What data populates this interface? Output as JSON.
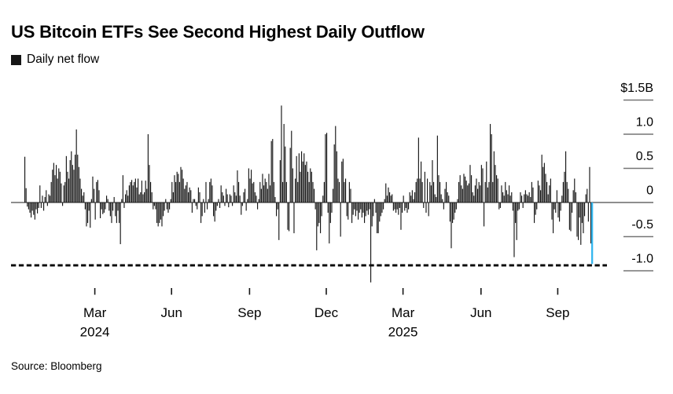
{
  "header": {
    "title": "US Bitcoin ETFs See Second Highest Daily Outflow",
    "legend_label": "Daily net flow"
  },
  "source": "Source: Bloomberg",
  "colors": {
    "bar": "#161616",
    "highlight": "#35b7ef",
    "zero_line": "#4a4a4a",
    "tick": "#757575",
    "dashed_line": "#000000",
    "text": "#000000",
    "background": "#ffffff"
  },
  "chart_data": {
    "type": "bar",
    "title": "US Bitcoin ETFs See Second Highest Daily Outflow",
    "series_name": "Daily net flow",
    "unit": "$B (daily net flow, US spot Bitcoin ETFs)",
    "ylim": [
      -1.25,
      1.55
    ],
    "grid": false,
    "legend_position": "top-left",
    "y_ticks": [
      {
        "label": "$1.5B",
        "value": 1.5
      },
      {
        "label": "1.0",
        "value": 1.0
      },
      {
        "label": "0.5",
        "value": 0.5
      },
      {
        "label": "0",
        "value": 0
      },
      {
        "label": "-0.5",
        "value": -0.5
      },
      {
        "label": "-1.0",
        "value": -1.0
      }
    ],
    "x_ticks": [
      {
        "label": "Mar",
        "year": "2024",
        "index": 56
      },
      {
        "label": "Jun",
        "index": 117
      },
      {
        "label": "Sep",
        "index": 179
      },
      {
        "label": "Dec",
        "index": 240
      },
      {
        "label": "Mar",
        "year": "2025",
        "index": 301
      },
      {
        "label": "Jun",
        "index": 363
      },
      {
        "label": "Sep",
        "index": 424
      }
    ],
    "reference_line": {
      "value": -0.92,
      "style": "dashed",
      "meaning": "level of second highest daily outflow"
    },
    "highlight": {
      "position": "last-bar",
      "value": -0.9,
      "color": "#35b7ef",
      "note": "second highest daily outflow"
    },
    "values": [
      0.67,
      0.21,
      -0.06,
      -0.1,
      -0.15,
      -0.22,
      -0.12,
      -0.18,
      -0.25,
      -0.1,
      -0.16,
      -0.08,
      0.25,
      -0.08,
      0.1,
      -0.12,
      0.08,
      0.18,
      -0.05,
      0.12,
      0.1,
      0.3,
      0.48,
      0.58,
      0.4,
      0.55,
      0.35,
      0.5,
      0.45,
      0.28,
      -0.05,
      0.25,
      0.3,
      0.68,
      0.45,
      0.35,
      0.62,
      0.75,
      0.55,
      0.48,
      0.7,
      1.07,
      0.7,
      0.52,
      0.35,
      0.2,
      0.1,
      0.15,
      -0.1,
      -0.35,
      -0.3,
      -0.12,
      -0.37,
      0.05,
      0.38,
      0.2,
      -0.25,
      0.3,
      0.33,
      0.18,
      -0.23,
      -0.1,
      -0.17,
      -0.15,
      -0.1,
      0.1,
      0.05,
      -0.12,
      -0.2,
      -0.3,
      -0.12,
      0.08,
      -0.2,
      -0.3,
      -0.12,
      -0.3,
      -0.61,
      0.05,
      0.4,
      -0.08,
      0.12,
      0.18,
      0.1,
      0.25,
      0.3,
      0.33,
      0.25,
      0.3,
      0.35,
      0.22,
      0.35,
      0.12,
      0.15,
      0.32,
      0.12,
      0.15,
      0.32,
      0.2,
      1.0,
      0.55,
      0.3,
      0.15,
      -0.1,
      -0.05,
      -0.1,
      -0.3,
      -0.35,
      -0.3,
      -0.25,
      -0.35,
      -0.2,
      -0.12,
      0.05,
      -0.1,
      -0.15,
      -0.1,
      0.05,
      0.3,
      0.15,
      0.4,
      0.3,
      0.45,
      0.42,
      0.3,
      0.52,
      0.48,
      0.35,
      0.2,
      0.25,
      0.3,
      0.15,
      0.22,
      0.18,
      -0.15,
      0.05,
      0.05,
      -0.05,
      -0.1,
      0.22,
      0.15,
      -0.3,
      -0.2,
      0.05,
      -0.15,
      0.3,
      -0.1,
      0.05,
      0.3,
      0.35,
      0.25,
      -0.2,
      -0.28,
      -0.12,
      -0.05,
      0.05,
      -0.08,
      0.25,
      0.15,
      0.1,
      -0.05,
      0.2,
      0.12,
      -0.07,
      0.12,
      0.1,
      -0.05,
      0.25,
      0.15,
      0.1,
      0.47,
      0.3,
      0.1,
      -0.18,
      -0.05,
      0.15,
      0.2,
      -0.12,
      0.05,
      0.5,
      0.35,
      0.48,
      0.28,
      0.3,
      0.15,
      0.1,
      -0.1,
      0.05,
      0.3,
      0.2,
      0.42,
      0.25,
      0.35,
      0.3,
      0.2,
      0.42,
      0.25,
      0.9,
      0.93,
      0.3,
      0.08,
      -0.2,
      -0.1,
      -0.55,
      0.62,
      1.42,
      0.3,
      1.15,
      0.82,
      0.3,
      -0.4,
      -0.42,
      0.8,
      1.05,
      0.5,
      -0.45,
      0.35,
      0.68,
      0.3,
      0.72,
      0.45,
      0.75,
      0.6,
      0.72,
      0.55,
      0.6,
      0.45,
      0.3,
      0.5,
      0.45,
      0.3,
      0.2,
      -0.1,
      -0.7,
      -0.35,
      -0.3,
      -0.45,
      -0.2,
      0.1,
      0.3,
      1.0,
      1.02,
      -0.15,
      -0.6,
      -0.3,
      -0.15,
      0.2,
      0.85,
      1.12,
      0.75,
      0.35,
      0.3,
      -0.5,
      0.6,
      0.64,
      0.3,
      0.35,
      -0.2,
      -0.25,
      0.3,
      0.2,
      -0.3,
      -0.18,
      -0.1,
      -0.2,
      -0.12,
      -0.25,
      -0.15,
      -0.1,
      -0.22,
      -0.15,
      -0.3,
      -0.2,
      -0.12,
      -0.18,
      -0.1,
      -1.17,
      -0.35,
      -0.2,
      0.05,
      -0.15,
      -0.45,
      -0.45,
      -0.28,
      -0.2,
      -0.15,
      -0.1,
      0.05,
      0.28,
      0.1,
      0.22,
      0.15,
      0.1,
      0.12,
      -0.12,
      -0.1,
      -0.15,
      -0.1,
      -0.18,
      -0.08,
      -0.4,
      -0.15,
      0.1,
      -0.12,
      -0.08,
      -0.15,
      -0.1,
      0.15,
      0.1,
      0.18,
      0.05,
      0.15,
      0.3,
      0.35,
      0.95,
      0.35,
      0.6,
      0.3,
      -0.08,
      0.45,
      -0.15,
      0.35,
      -0.2,
      0.3,
      0.25,
      0.62,
      0.3,
      0.12,
      0.08,
      0.98,
      0.4,
      0.3,
      0.12,
      0.05,
      -0.1,
      0.2,
      0.3,
      0.15,
      0.1,
      -0.28,
      -0.67,
      -0.3,
      -0.25,
      -0.15,
      -0.1,
      0.05,
      0.3,
      0.4,
      0.25,
      0.2,
      0.42,
      0.38,
      0.32,
      0.25,
      0.28,
      0.55,
      0.4,
      0.15,
      0.1,
      0.25,
      0.35,
      0.2,
      0.3,
      0.25,
      0.55,
      0.5,
      -0.35,
      0.3,
      0.6,
      0.22,
      0.3,
      1.15,
      1.0,
      0.3,
      0.75,
      0.55,
      0.4,
      0.35,
      -0.1,
      -0.08,
      0.25,
      0.15,
      0.1,
      0.3,
      0.18,
      0.12,
      0.25,
      0.1,
      0.15,
      -0.12,
      -0.8,
      -0.3,
      -0.55,
      -0.12,
      -0.1,
      0.15,
      0.1,
      -0.08,
      0.12,
      0.18,
      0.12,
      0.1,
      0.15,
      0.08,
      0.3,
      0.22,
      -0.3,
      -0.18,
      -0.1,
      0.32,
      0.25,
      0.18,
      0.7,
      0.52,
      0.58,
      0.42,
      0.3,
      0.12,
      0.25,
      0.35,
      -0.25,
      -0.45,
      -0.1,
      -0.15,
      0.18,
      -0.22,
      -0.28,
      -0.12,
      0.1,
      0.3,
      0.45,
      0.75,
      0.3,
      0.2,
      -0.4,
      -0.42,
      -0.15,
      0.18,
      0.35,
      0.15,
      -0.5,
      -0.55,
      -0.22,
      -0.62,
      -0.3,
      -0.45,
      -0.2,
      0.12,
      0.2,
      -0.28,
      0.52,
      -0.6,
      -0.9
    ]
  }
}
